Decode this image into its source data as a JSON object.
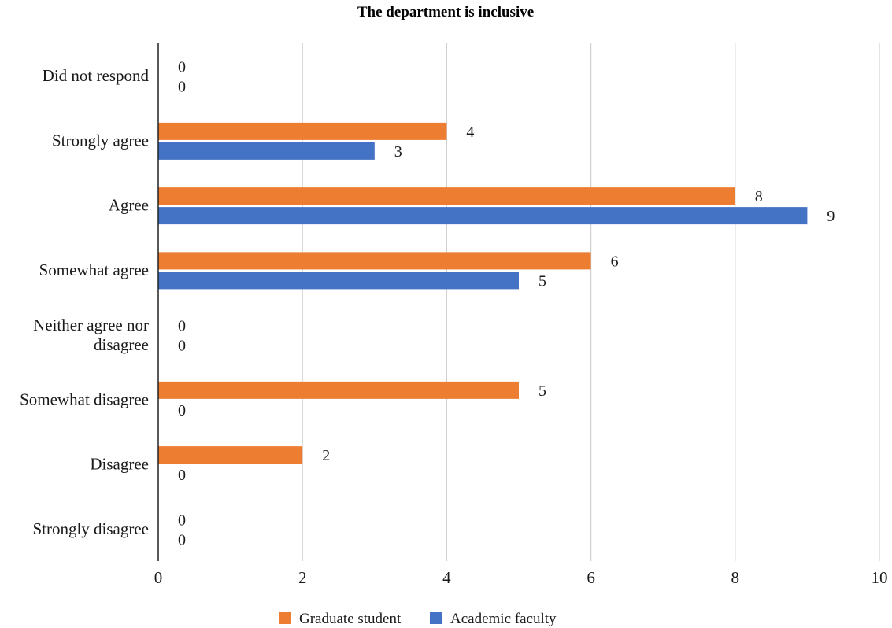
{
  "chart_data": {
    "type": "bar",
    "orientation": "horizontal",
    "title": "The department is inclusive",
    "categories": [
      "Did not respond",
      "Strongly agree",
      "Agree",
      "Somewhat agree",
      "Neither agree nor disagree",
      "Somewhat disagree",
      "Disagree",
      "Strongly disagree"
    ],
    "series": [
      {
        "name": "Graduate student",
        "color": "#ED7D31",
        "values": [
          0,
          4,
          8,
          6,
          0,
          5,
          2,
          0
        ]
      },
      {
        "name": "Academic faculty",
        "color": "#4472C4",
        "values": [
          0,
          3,
          9,
          5,
          0,
          0,
          0,
          0
        ]
      }
    ],
    "xlim": [
      0,
      10
    ],
    "xticks": [
      0,
      2,
      4,
      6,
      8,
      10
    ],
    "grid": true,
    "legend": "bottom"
  }
}
